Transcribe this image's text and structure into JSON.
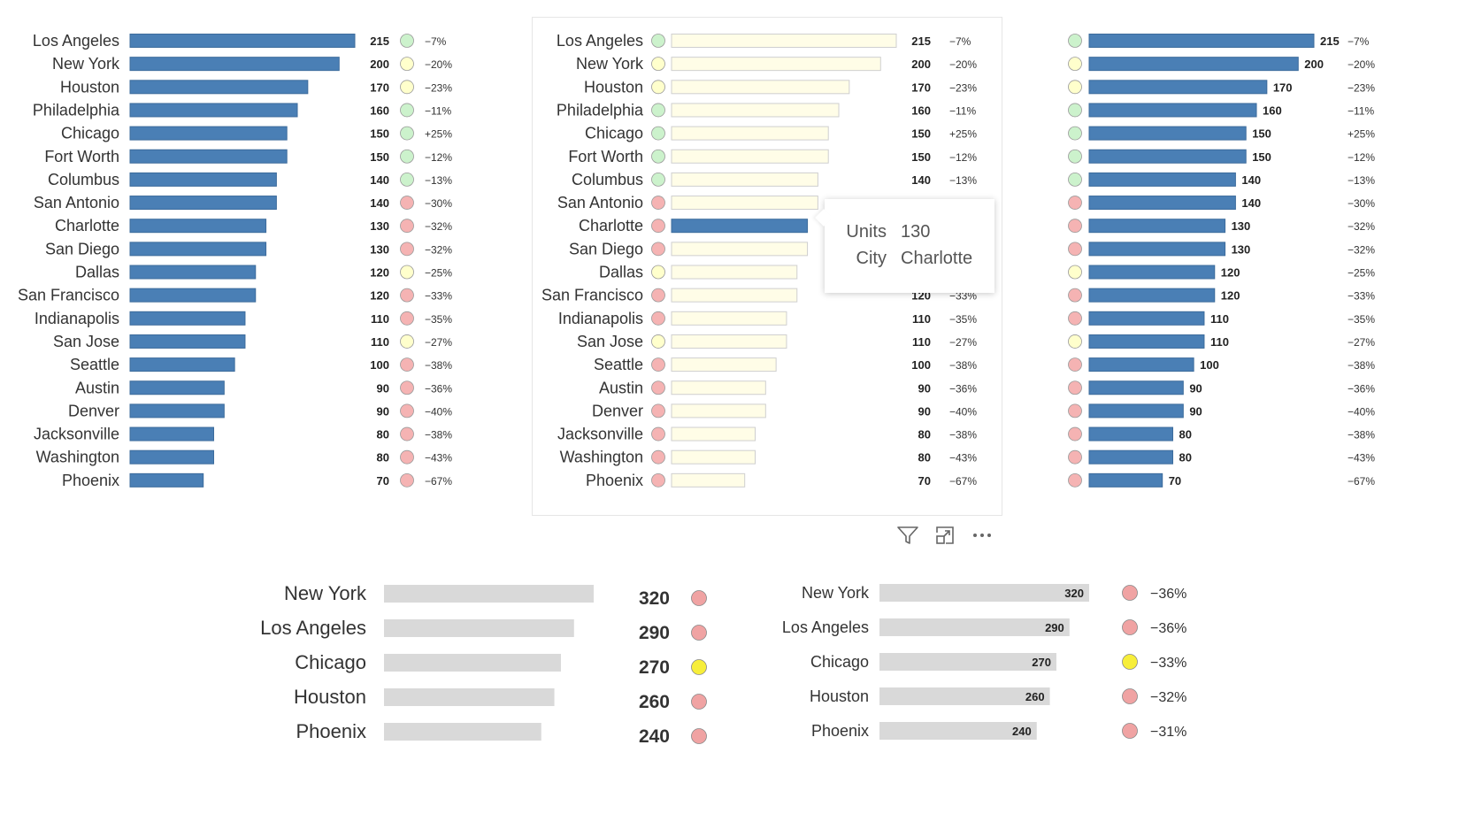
{
  "colors": {
    "bar_blue": "#4a7fb5",
    "bar_light": "#fffde7",
    "bar_light_stroke": "#cfcfcf",
    "bar_grey": "#d9d9d9",
    "status_green": "#ccf2cc",
    "status_yellow": "#ffffcc",
    "status_red": "#f5b3b3",
    "status_yellow_strong": "#f7ee3a",
    "status_red_strong": "#f0a3a3",
    "highlight": "#4a7fb5"
  },
  "tooltip": {
    "rows": [
      {
        "key": "Units",
        "value": "130"
      },
      {
        "key": "City",
        "value": "Charlotte"
      }
    ]
  },
  "toolbar": {
    "filter_icon": "filter-icon",
    "focus_icon": "focus-mode-icon",
    "more_icon": "more-options-icon"
  },
  "chart_data": [
    {
      "type": "bar",
      "orientation": "horizontal",
      "categories": [
        "Los Angeles",
        "New York",
        "Houston",
        "Philadelphia",
        "Chicago",
        "Fort Worth",
        "Columbus",
        "San Antonio",
        "Charlotte",
        "San Diego",
        "Dallas",
        "San Francisco",
        "Indianapolis",
        "San Jose",
        "Seattle",
        "Austin",
        "Denver",
        "Jacksonville",
        "Washington",
        "Phoenix"
      ],
      "values": [
        215,
        200,
        170,
        160,
        150,
        150,
        140,
        140,
        130,
        130,
        120,
        120,
        110,
        110,
        100,
        90,
        90,
        80,
        80,
        70
      ],
      "value_labels": [
        "215",
        "200",
        "170",
        "160",
        "150",
        "150",
        "140",
        "140",
        "130",
        "130",
        "120",
        "120",
        "110",
        "110",
        "100",
        "90",
        "90",
        "80",
        "80",
        "70"
      ],
      "change_labels": [
        "−7%",
        "−20%",
        "−23%",
        "−11%",
        "+25%",
        "−12%",
        "−13%",
        "−30%",
        "−32%",
        "−32%",
        "−25%",
        "−33%",
        "−35%",
        "−27%",
        "−38%",
        "−36%",
        "−40%",
        "−38%",
        "−43%",
        "−67%"
      ],
      "status": [
        "green",
        "yellow",
        "yellow",
        "green",
        "green",
        "green",
        "green",
        "red",
        "red",
        "red",
        "yellow",
        "red",
        "red",
        "yellow",
        "red",
        "red",
        "red",
        "red",
        "red",
        "red"
      ],
      "xlim": [
        0,
        215
      ]
    },
    {
      "type": "bar",
      "orientation": "horizontal",
      "categories": [
        "Los Angeles",
        "New York",
        "Houston",
        "Philadelphia",
        "Chicago",
        "Fort Worth",
        "Columbus",
        "San Antonio",
        "Charlotte",
        "San Diego",
        "Dallas",
        "San Francisco",
        "Indianapolis",
        "San Jose",
        "Seattle",
        "Austin",
        "Denver",
        "Jacksonville",
        "Washington",
        "Phoenix"
      ],
      "values": [
        215,
        200,
        170,
        160,
        150,
        150,
        140,
        140,
        130,
        130,
        120,
        120,
        110,
        110,
        100,
        90,
        90,
        80,
        80,
        70
      ],
      "value_labels": [
        "215",
        "200",
        "170",
        "160",
        "150",
        "150",
        "140",
        "140",
        "130",
        "130",
        "120",
        "120",
        "110",
        "110",
        "100",
        "90",
        "90",
        "80",
        "80",
        "70"
      ],
      "change_labels": [
        "−7%",
        "−20%",
        "−23%",
        "−11%",
        "+25%",
        "−12%",
        "−13%",
        "−30%",
        "−32%",
        "−32%",
        "−25%",
        "−33%",
        "−35%",
        "−27%",
        "−38%",
        "−36%",
        "−40%",
        "−38%",
        "−43%",
        "−67%"
      ],
      "status": [
        "green",
        "yellow",
        "yellow",
        "green",
        "green",
        "green",
        "green",
        "red",
        "red",
        "red",
        "yellow",
        "red",
        "red",
        "yellow",
        "red",
        "red",
        "red",
        "red",
        "red",
        "red"
      ],
      "highlighted_category": "Charlotte",
      "xlim": [
        0,
        215
      ]
    },
    {
      "type": "bar",
      "orientation": "horizontal",
      "values": [
        215,
        200,
        170,
        160,
        150,
        150,
        140,
        140,
        130,
        130,
        120,
        120,
        110,
        110,
        100,
        90,
        90,
        80,
        80,
        70
      ],
      "value_labels": [
        "215",
        "200",
        "170",
        "160",
        "150",
        "150",
        "140",
        "140",
        "130",
        "130",
        "120",
        "120",
        "110",
        "110",
        "100",
        "90",
        "90",
        "80",
        "80",
        "70"
      ],
      "change_labels": [
        "−7%",
        "−20%",
        "−23%",
        "−11%",
        "+25%",
        "−12%",
        "−13%",
        "−30%",
        "−32%",
        "−32%",
        "−25%",
        "−33%",
        "−35%",
        "−27%",
        "−38%",
        "−36%",
        "−40%",
        "−38%",
        "−43%",
        "−67%"
      ],
      "status": [
        "green",
        "yellow",
        "yellow",
        "green",
        "green",
        "green",
        "green",
        "red",
        "red",
        "red",
        "yellow",
        "red",
        "red",
        "yellow",
        "red",
        "red",
        "red",
        "red",
        "red",
        "red"
      ],
      "xlim": [
        0,
        215
      ]
    },
    {
      "type": "bar",
      "orientation": "horizontal",
      "categories": [
        "New York",
        "Los Angeles",
        "Chicago",
        "Houston",
        "Phoenix"
      ],
      "values": [
        320,
        290,
        270,
        260,
        240
      ],
      "value_labels": [
        "320",
        "290",
        "270",
        "260",
        "240"
      ],
      "status": [
        "red",
        "red",
        "yellow",
        "red",
        "red"
      ],
      "xlim": [
        0,
        320
      ]
    },
    {
      "type": "bar",
      "orientation": "horizontal",
      "categories": [
        "New York",
        "Los Angeles",
        "Chicago",
        "Houston",
        "Phoenix"
      ],
      "values": [
        320,
        290,
        270,
        260,
        240
      ],
      "value_labels": [
        "320",
        "290",
        "270",
        "260",
        "240"
      ],
      "change_labels": [
        "−36%",
        "−36%",
        "−33%",
        "−32%",
        "−31%"
      ],
      "status": [
        "red",
        "red",
        "yellow",
        "red",
        "red"
      ],
      "xlim": [
        0,
        320
      ]
    }
  ]
}
